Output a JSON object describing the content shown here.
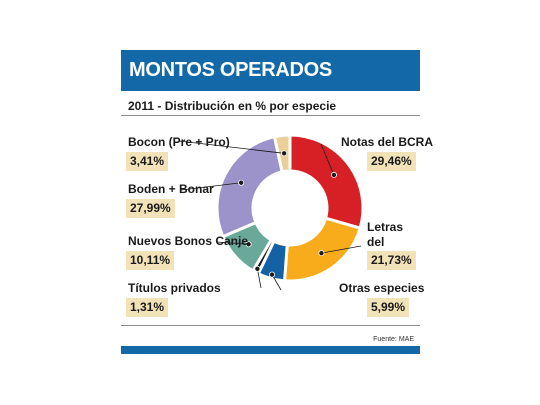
{
  "header": {
    "title": "MONTOS OPERADOS"
  },
  "subtitle": "2011 - Distribución en % por especie",
  "source": "Fuente: MAE",
  "chart_data": {
    "type": "pie",
    "style": "donut",
    "title": "MONTOS OPERADOS",
    "subtitle": "2011 - Distribución en % por especie",
    "categories": [
      "Notas del BCRA",
      "Letras del BCRA",
      "Otras especies",
      "Títulos privados",
      "Nuevos Bonos Canje",
      "Boden + Bonar",
      "Bocon (Pre + Pro)"
    ],
    "values": [
      29.46,
      21.73,
      5.99,
      1.31,
      10.11,
      27.99,
      3.41
    ],
    "value_labels": [
      "29,46%",
      "21,73%",
      "5,99%",
      "1,31%",
      "10,11%",
      "27,99%",
      "3,41%"
    ],
    "colors": [
      "#d71f26",
      "#f9ac1b",
      "#1461a4",
      "#1a1a1a",
      "#6aa89a",
      "#9b93c9",
      "#e9cf98"
    ],
    "legend": "callout labels"
  }
}
